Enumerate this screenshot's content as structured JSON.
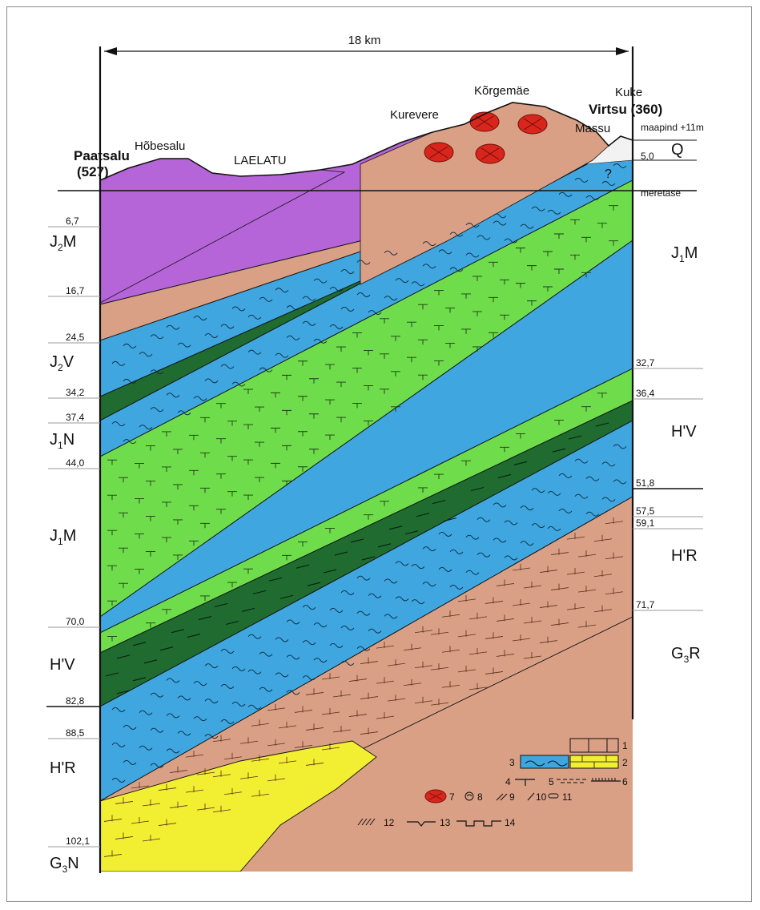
{
  "scale_label": "18 km",
  "wells": {
    "left": {
      "name": "Paatsalu",
      "code": "(527)"
    },
    "right": {
      "name": "Virtsu (360)"
    }
  },
  "places": [
    "Hõbesalu",
    "LAELATU",
    "Kurevere",
    "Kõrgemäe",
    "Kuke",
    "Massu"
  ],
  "right_top": {
    "surface": "maapind +11m",
    "sea_level": "meretase",
    "q_label": "Q",
    "q_depth": "5,0"
  },
  "left_depths": [
    "6,7",
    "16,7",
    "24,5",
    "34,2",
    "37,4",
    "44,0",
    "70,0",
    "82,8",
    "88,5",
    "102,1"
  ],
  "right_depths": [
    "32,7",
    "36,4",
    "51,8",
    "57,5",
    "59,1",
    "71,7"
  ],
  "left_units": [
    {
      "main": "J",
      "sub": "2",
      "rest": "M"
    },
    {
      "main": "J",
      "sub": "2",
      "rest": "V"
    },
    {
      "main": "J",
      "sub": "1",
      "rest": "N"
    },
    {
      "main": "J",
      "sub": "1",
      "rest": "M"
    },
    {
      "main": "H'V",
      "sub": "",
      "rest": ""
    },
    {
      "main": "H'R",
      "sub": "",
      "rest": ""
    },
    {
      "main": "G",
      "sub": "3",
      "rest": "N"
    }
  ],
  "right_units": [
    {
      "main": "J",
      "sub": "1",
      "rest": "M"
    },
    {
      "main": "H'V",
      "sub": "",
      "rest": ""
    },
    {
      "main": "H'R",
      "sub": "",
      "rest": ""
    },
    {
      "main": "G",
      "sub": "3",
      "rest": "R"
    }
  ],
  "question_mark": "?",
  "legend_numbers": [
    "1",
    "2",
    "3",
    "4",
    "5",
    "6",
    "7",
    "8",
    "9",
    "10",
    "11",
    "12",
    "13",
    "14"
  ],
  "colors": {
    "purple": "#b565d8",
    "salmon": "#d9a085",
    "blue": "#3fa6e0",
    "light_green": "#6fdc4c",
    "dark_green": "#1f6b30",
    "yellow": "#f2ee32",
    "red": "#d8261c",
    "white_q": "#f2f2f2"
  }
}
